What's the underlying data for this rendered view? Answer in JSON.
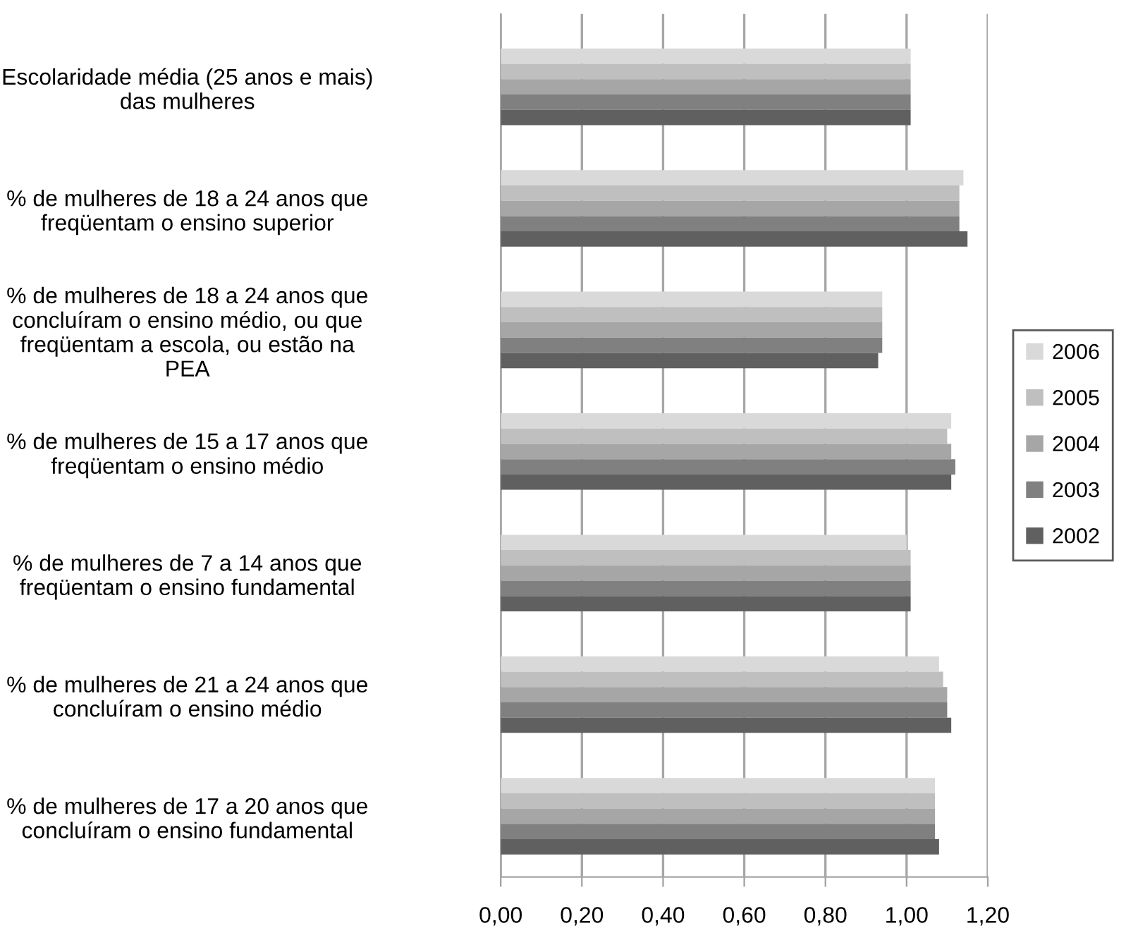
{
  "chart_data": {
    "type": "bar",
    "orientation": "horizontal",
    "categories": [
      "Escolaridade média (25 anos e mais) das mulheres",
      "% de mulheres de 18 a 24 anos que freqüentam o ensino superior",
      "% de mulheres de 18 a 24 anos que concluíram o ensino médio, ou que freqüentam a escola, ou estão na PEA",
      "% de mulheres de 15 a 17 anos que freqüentam o ensino médio",
      "% de mulheres de 7 a 14 anos que freqüentam o ensino fundamental",
      "% de mulheres de 21 a 24 anos que concluíram o ensino médio",
      "% de mulheres de 17 a 20 anos que concluíram o ensino fundamental"
    ],
    "series": [
      {
        "name": "2006",
        "color": "#d9d9d9",
        "values": [
          1.01,
          1.14,
          0.94,
          1.11,
          1.0,
          1.08,
          1.07
        ]
      },
      {
        "name": "2005",
        "color": "#bfbfbf",
        "values": [
          1.01,
          1.13,
          0.94,
          1.1,
          1.01,
          1.09,
          1.07
        ]
      },
      {
        "name": "2004",
        "color": "#a6a6a6",
        "values": [
          1.01,
          1.13,
          0.94,
          1.11,
          1.01,
          1.1,
          1.07
        ]
      },
      {
        "name": "2003",
        "color": "#808080",
        "values": [
          1.01,
          1.13,
          0.94,
          1.12,
          1.01,
          1.1,
          1.07
        ]
      },
      {
        "name": "2002",
        "color": "#606060",
        "values": [
          1.01,
          1.15,
          0.93,
          1.11,
          1.01,
          1.11,
          1.08
        ]
      }
    ],
    "xlim": [
      0,
      1.2
    ],
    "xticks": [
      {
        "value": 0,
        "label": "0,00"
      },
      {
        "value": 0.2,
        "label": "0,20"
      },
      {
        "value": 0.4,
        "label": "0,40"
      },
      {
        "value": 0.6,
        "label": "0,60"
      },
      {
        "value": 0.8,
        "label": "0,80"
      },
      {
        "value": 1.0,
        "label": "1,00"
      },
      {
        "value": 1.2,
        "label": "1,20"
      }
    ],
    "grid": "x",
    "legend": "right"
  }
}
